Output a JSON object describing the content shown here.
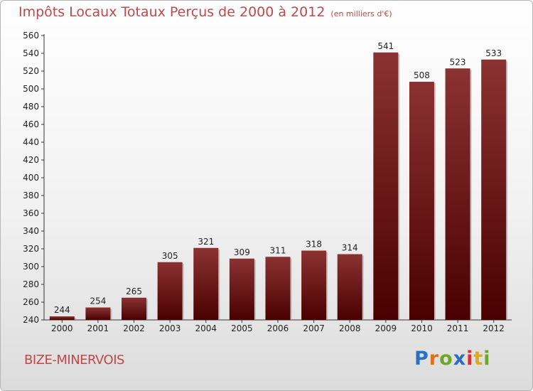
{
  "header": {
    "title": "Impôts Locaux Totaux Perçus de 2000 à 2012",
    "unit": "(en milliers d'€)"
  },
  "footer": {
    "commune": "BIZE-MINERVOIS",
    "brand": "Proxiti"
  },
  "colors": {
    "title": "#c04848",
    "bar_top": "#8b3232",
    "bar_bottom": "#4a0000",
    "brand_letters": [
      "#2b6fc0",
      "#e0701c",
      "#6aa82a",
      "#2b6fc0",
      "#d83030",
      "#e0a81c",
      "#6aa82a"
    ]
  },
  "chart_data": {
    "type": "bar",
    "title": "Impôts Locaux Totaux Perçus de 2000 à 2012",
    "subtitle": "(en milliers d'€)",
    "xlabel": "",
    "ylabel": "",
    "categories": [
      "2000",
      "2001",
      "2002",
      "2003",
      "2004",
      "2005",
      "2006",
      "2007",
      "2008",
      "2009",
      "2010",
      "2011",
      "2012"
    ],
    "values": [
      244,
      254,
      265,
      305,
      321,
      309,
      311,
      318,
      314,
      541,
      508,
      523,
      533
    ],
    "ylim": [
      240,
      560
    ],
    "ytick_step": 20,
    "grid": false,
    "legend": "none"
  }
}
